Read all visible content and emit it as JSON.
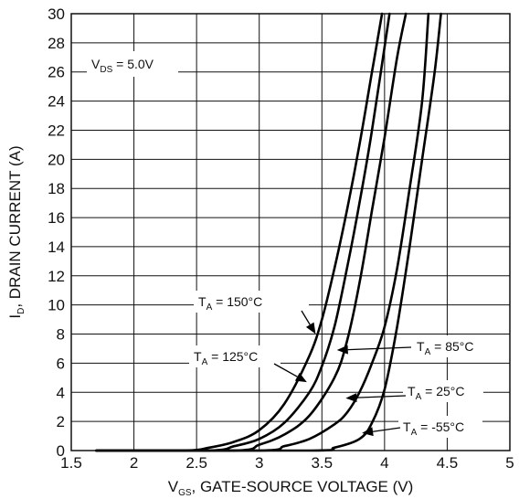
{
  "chart_data": {
    "type": "line",
    "xlabel": {
      "main": "V",
      "sub": "GS",
      "rest": ", GATE-SOURCE VOLTAGE (V)"
    },
    "ylabel": {
      "main": "I",
      "sub": "D",
      "rest": ", DRAIN CURRENT (A)"
    },
    "xlim": [
      1.5,
      5
    ],
    "ylim": [
      0,
      30
    ],
    "x_ticks": [
      "1.5",
      "2",
      "2.5",
      "3",
      "3.5",
      "4",
      "4.5",
      "5"
    ],
    "y_ticks": [
      "0",
      "2",
      "4",
      "6",
      "8",
      "10",
      "12",
      "14",
      "16",
      "18",
      "20",
      "22",
      "24",
      "26",
      "28",
      "30"
    ],
    "grid": true,
    "condition": {
      "main": "V",
      "sub": "DS",
      "rest": " = 5.0V"
    },
    "series": [
      {
        "name": {
          "main": "T",
          "sub": "A",
          "rest": " = 150°C"
        },
        "x": [
          1.7,
          2.4,
          2.6,
          2.8,
          3.0,
          3.2,
          3.4,
          3.5,
          3.6,
          3.7,
          3.8,
          3.9,
          3.98
        ],
        "y": [
          0,
          0,
          0.2,
          0.6,
          1.4,
          3.2,
          6.5,
          9.0,
          12.5,
          16.5,
          21.0,
          26.0,
          30
        ]
      },
      {
        "name": {
          "main": "T",
          "sub": "A",
          "rest": " = 125°C"
        },
        "x": [
          1.7,
          2.6,
          2.8,
          3.0,
          3.2,
          3.4,
          3.5,
          3.6,
          3.7,
          3.8,
          3.9,
          4.04
        ],
        "y": [
          0,
          0,
          0.3,
          0.8,
          1.9,
          4.0,
          5.8,
          8.5,
          12.5,
          17.0,
          22.0,
          30
        ]
      },
      {
        "name": {
          "main": "T",
          "sub": "A",
          "rest": " = 85°C"
        },
        "x": [
          1.7,
          2.8,
          3.0,
          3.2,
          3.4,
          3.6,
          3.7,
          3.8,
          3.9,
          4.0,
          4.1,
          4.17
        ],
        "y": [
          0,
          0,
          0.4,
          1.1,
          2.4,
          5.0,
          7.5,
          11.5,
          16.5,
          21.5,
          27.0,
          30
        ]
      },
      {
        "name": {
          "main": "T",
          "sub": "A",
          "rest": " = 25°C"
        },
        "x": [
          1.7,
          3.0,
          3.2,
          3.4,
          3.6,
          3.7,
          3.8,
          3.9,
          4.0,
          4.1,
          4.2,
          4.3,
          4.35
        ],
        "y": [
          0,
          0,
          0.3,
          0.8,
          1.8,
          2.6,
          4.0,
          6.0,
          8.5,
          12.5,
          18.0,
          24.0,
          30
        ]
      },
      {
        "name": {
          "main": "T",
          "sub": "A",
          "rest": " = -55°C"
        },
        "x": [
          1.7,
          3.4,
          3.6,
          3.8,
          3.9,
          4.0,
          4.1,
          4.2,
          4.3,
          4.4,
          4.45
        ],
        "y": [
          0,
          0,
          0.2,
          0.8,
          1.9,
          4.2,
          8.5,
          14.0,
          20.0,
          26.0,
          30
        ]
      }
    ]
  }
}
